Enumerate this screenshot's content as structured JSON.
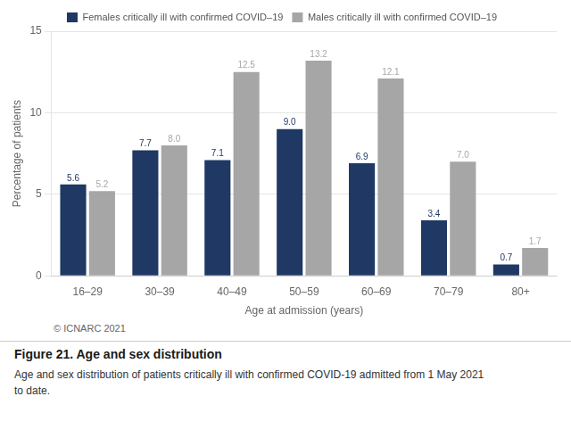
{
  "chart_data": {
    "type": "bar",
    "title": "Figure 21.  Age and sex distribution",
    "subtitle": "Age and sex distribution of patients critically ill with confirmed COVID-19 admitted from 1 May 2021\nto date.",
    "annotations": [
      "© ICNARC 2021"
    ],
    "x_label": "Age at admission (years)",
    "y_label": "Percentage of patients",
    "categories": [
      "16–29",
      "30–39",
      "40–49",
      "50–59",
      "60–69",
      "70–79",
      "80+"
    ],
    "series": [
      {
        "name": "Females critically ill with confirmed COVID–19",
        "color": "#1f3864",
        "values": [
          5.6,
          7.7,
          7.1,
          9.0,
          6.9,
          3.4,
          0.7
        ],
        "value_labels": [
          "5.6",
          "7.7",
          "7.1",
          "9.0",
          "6.9",
          "3.4",
          "0.7"
        ]
      },
      {
        "name": "Males critically ill with confirmed COVID–19",
        "color": "#a6a6a6",
        "values": [
          5.2,
          8.0,
          12.5,
          13.2,
          12.1,
          7.0,
          1.7
        ],
        "value_labels": [
          "5.2",
          "8.0",
          "12.5",
          "13.2",
          "12.1",
          "7.0",
          "1.7"
        ]
      }
    ],
    "ylim": [
      0,
      15
    ],
    "yticks": [
      0,
      5,
      10,
      15
    ],
    "grid": true,
    "legend": "top",
    "data_labels": true
  }
}
